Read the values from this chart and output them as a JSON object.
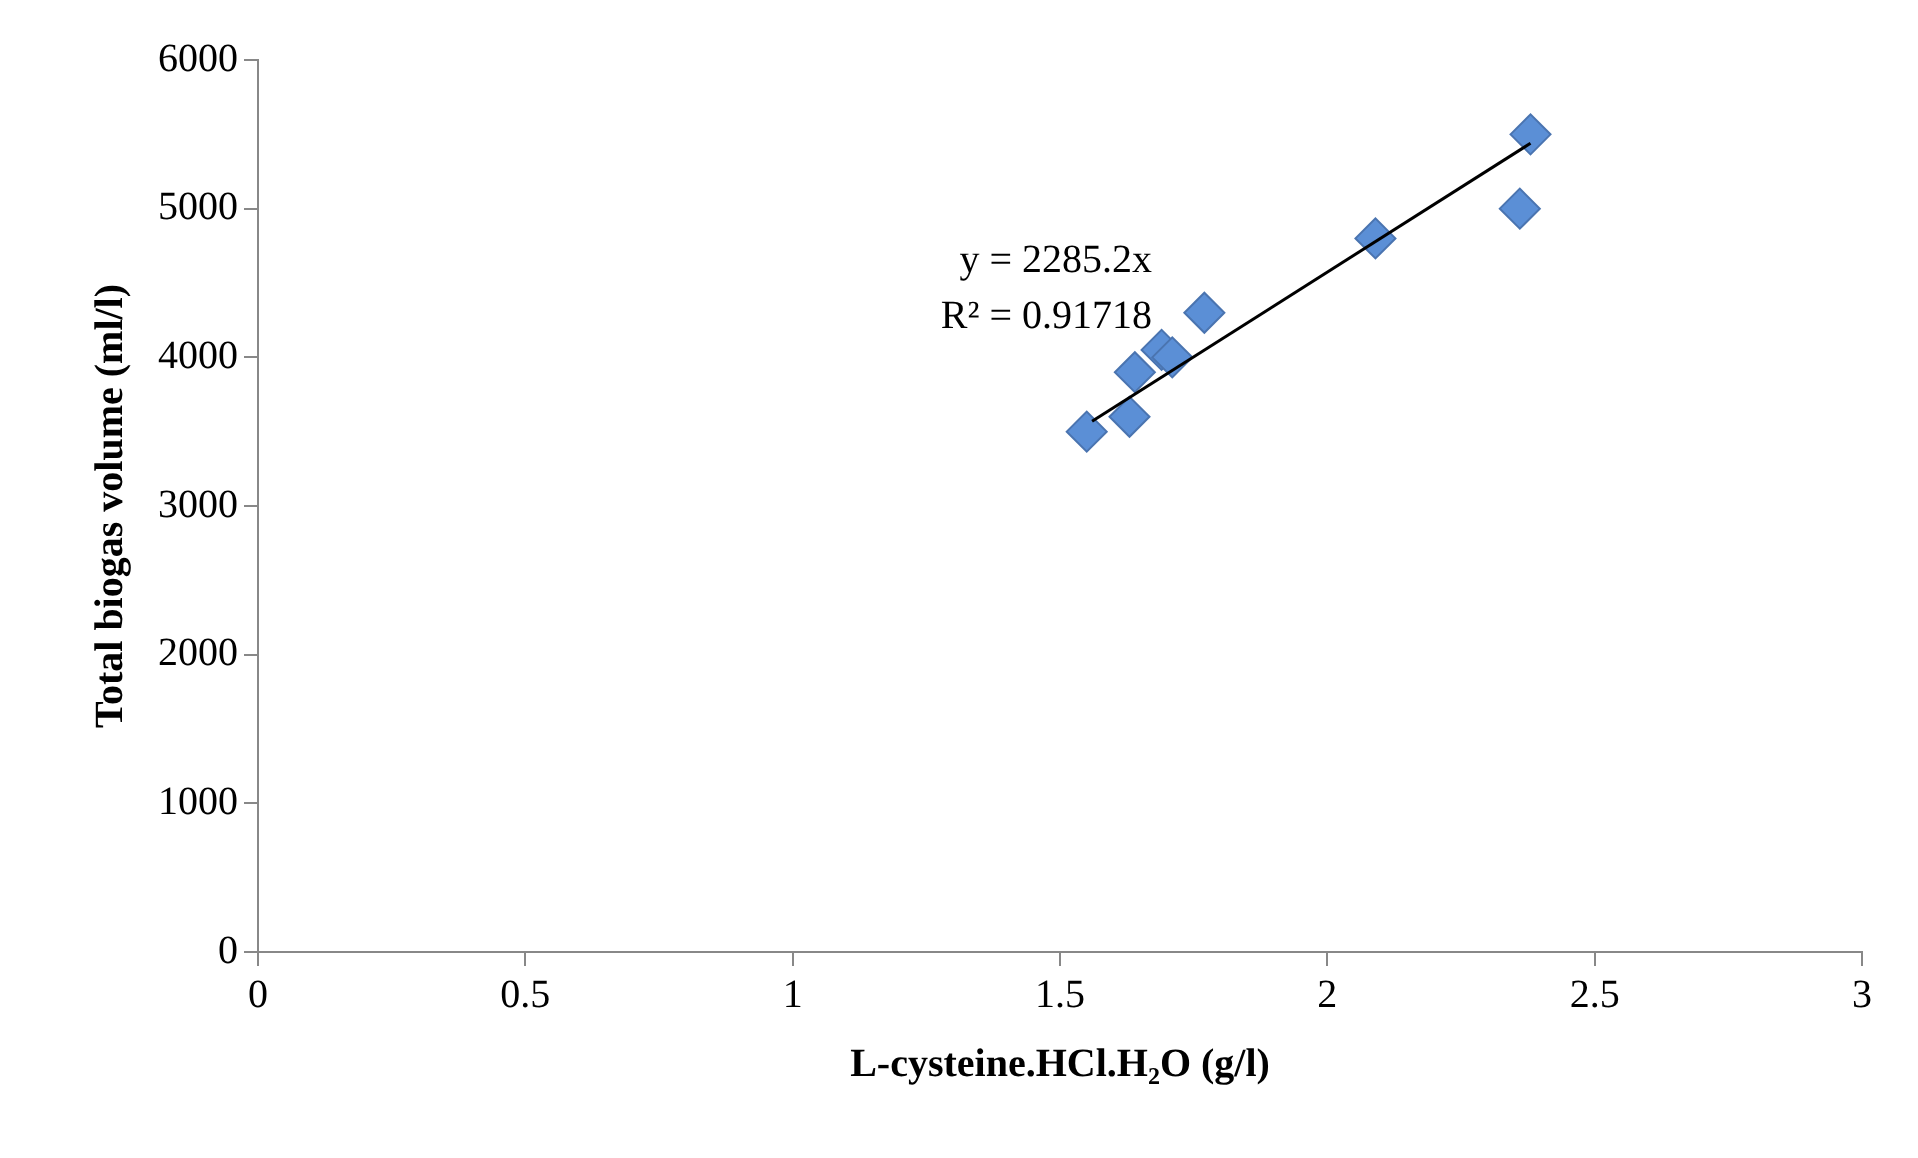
{
  "chart_data": {
    "type": "scatter",
    "xlabel": "L-cysteine.HCl.H₂O (g/l)",
    "ylabel": "Total biogas volume (ml/l)",
    "xlim": [
      0,
      3
    ],
    "xticks": [
      0,
      0.5,
      1,
      1.5,
      2,
      2.5,
      3
    ],
    "ylim": [
      0,
      6000
    ],
    "yticks": [
      0,
      1000,
      2000,
      3000,
      4000,
      5000,
      6000
    ],
    "grid": false,
    "legend": false,
    "series": [
      {
        "marker": "diamond",
        "color": "#5b8fd6",
        "x": [
          1.55,
          1.63,
          1.64,
          1.69,
          1.71,
          1.77,
          2.09,
          2.38,
          2.36
        ],
        "values": [
          3500,
          3600,
          3900,
          4050,
          4000,
          4300,
          4800,
          5500,
          5000
        ]
      },
      {
        "type": "line",
        "marker": "none",
        "color": "#000000",
        "x": [
          1.56,
          2.38
        ],
        "values": [
          3570,
          5440
        ]
      }
    ],
    "annotations": [
      "y = 2285.2x",
      "R² = 0.91718"
    ]
  }
}
